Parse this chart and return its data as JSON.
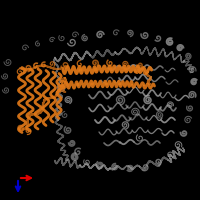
{
  "background_color": "#000000",
  "protein_color": "#a0a0a0",
  "highlight_color": "#e07818",
  "axis_x_color": "#dd0000",
  "axis_y_color": "#0000cc",
  "figsize": [
    2.0,
    2.0
  ],
  "dpi": 100
}
